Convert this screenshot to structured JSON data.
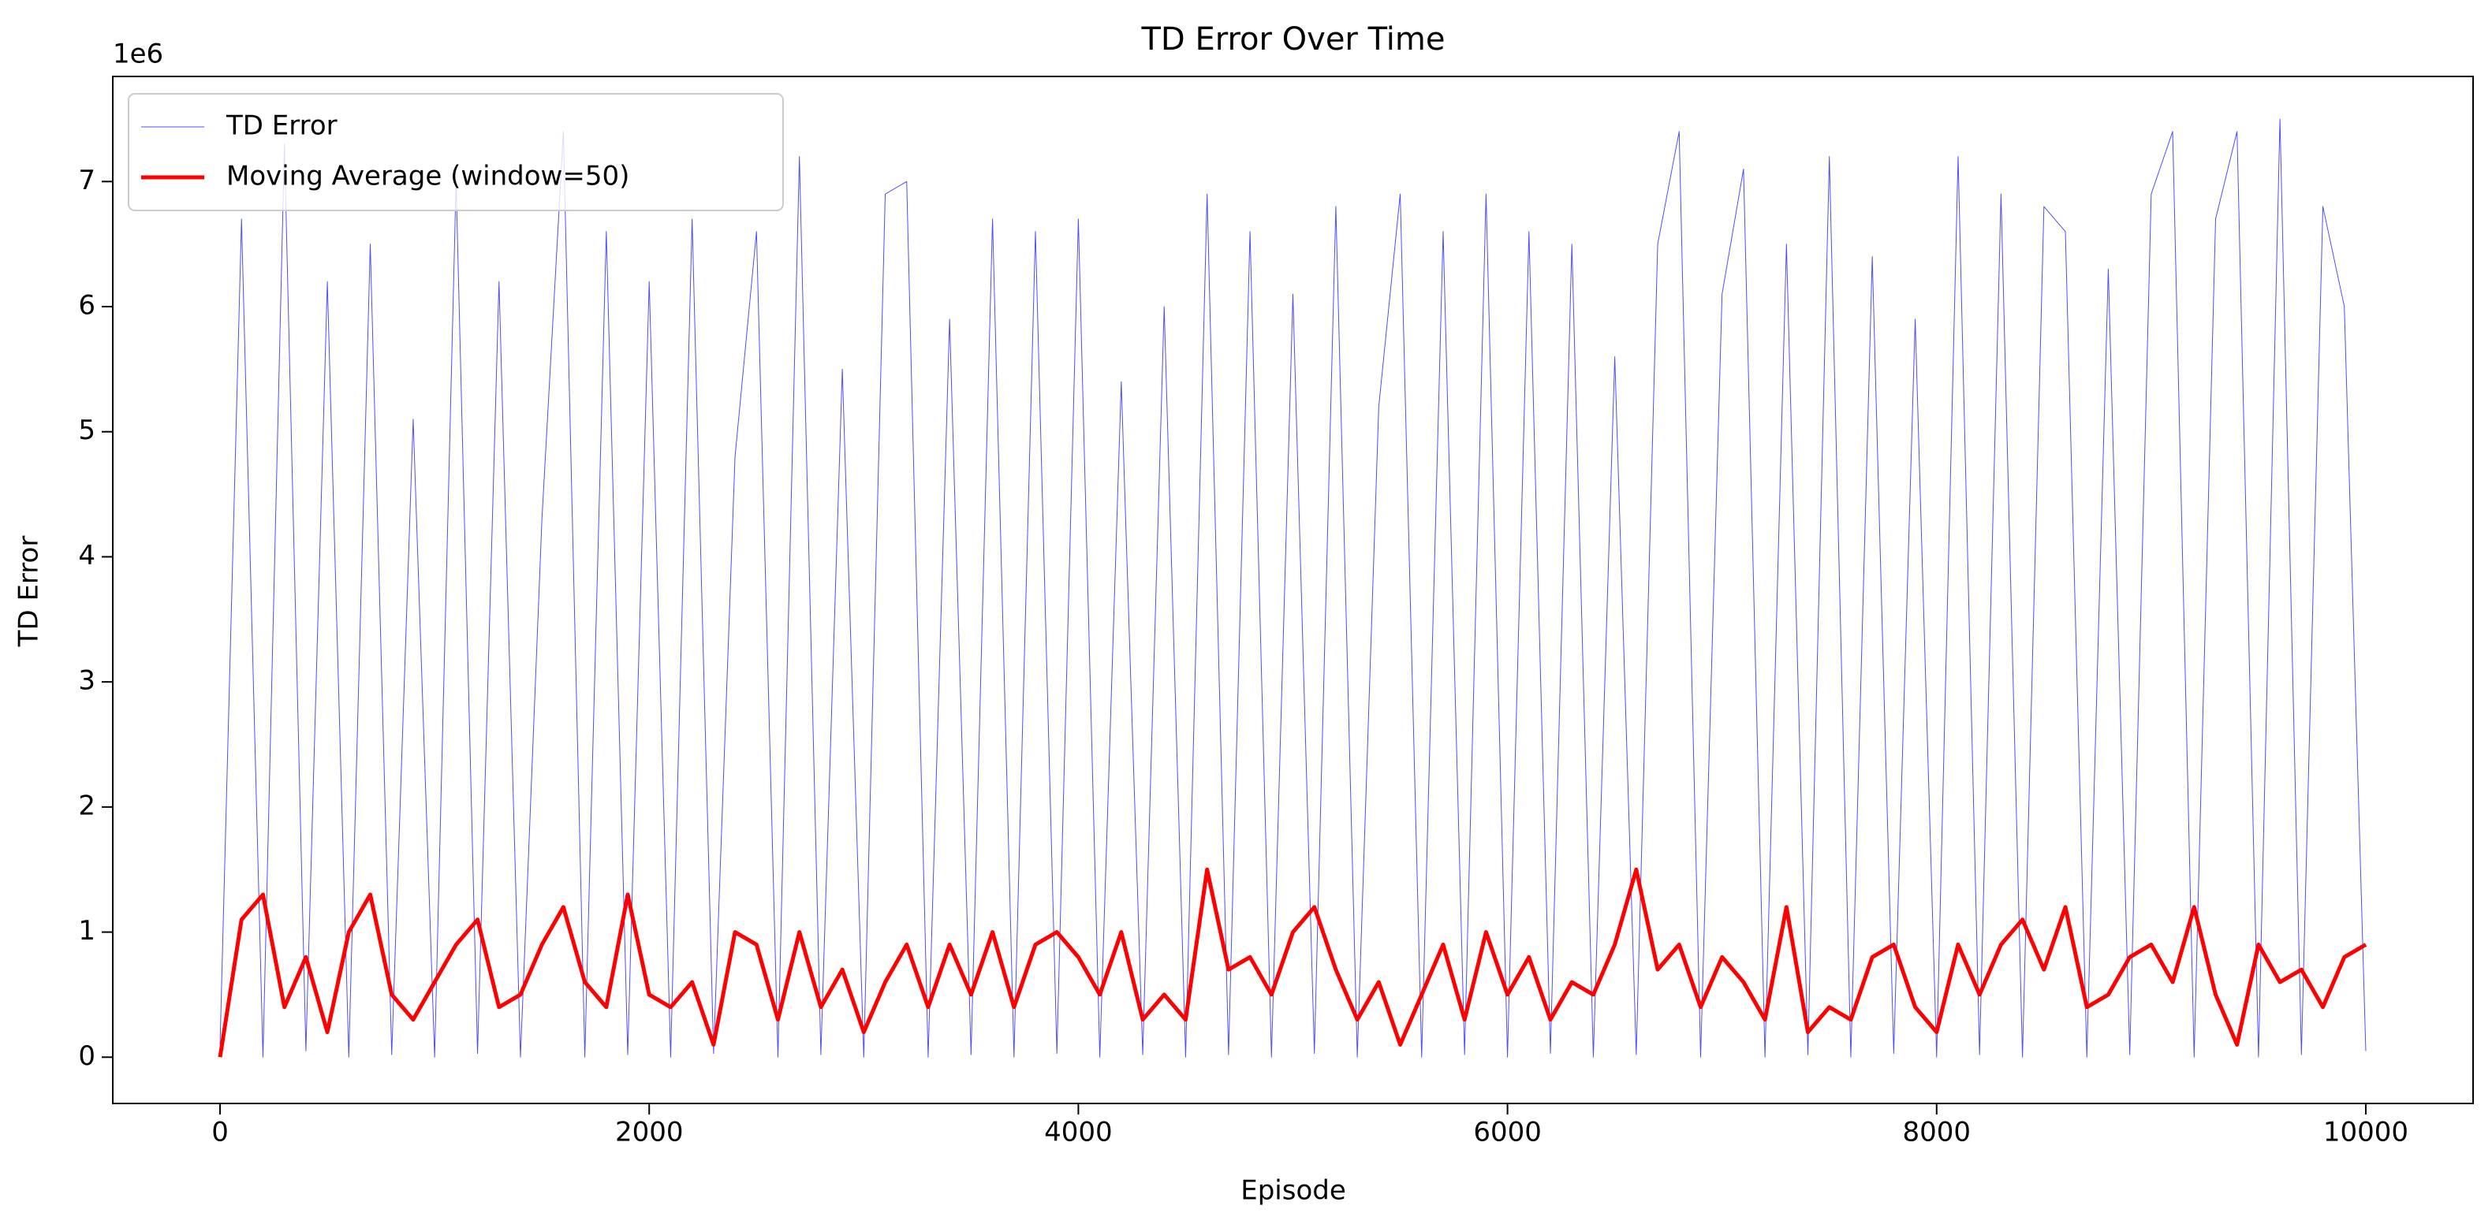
{
  "chart_data": {
    "type": "line",
    "title": "TD Error Over Time",
    "xlabel": "Episode",
    "ylabel": "TD Error",
    "y_offset_label": "1e6",
    "legend": "upper left",
    "xlim": [
      -500,
      10500
    ],
    "ylim": [
      -0.37,
      7.84
    ],
    "xticks": [
      0,
      2000,
      4000,
      6000,
      8000,
      10000
    ],
    "yticks": [
      0,
      1,
      2,
      3,
      4,
      5,
      6,
      7
    ],
    "x": [
      0,
      100,
      200,
      300,
      400,
      500,
      600,
      700,
      800,
      900,
      1000,
      1100,
      1200,
      1300,
      1400,
      1500,
      1600,
      1700,
      1800,
      1900,
      2000,
      2100,
      2200,
      2300,
      2400,
      2500,
      2600,
      2700,
      2800,
      2900,
      3000,
      3100,
      3200,
      3300,
      3400,
      3500,
      3600,
      3700,
      3800,
      3900,
      4000,
      4100,
      4200,
      4300,
      4400,
      4500,
      4600,
      4700,
      4800,
      4900,
      5000,
      5100,
      5200,
      5300,
      5400,
      5500,
      5600,
      5700,
      5800,
      5900,
      6000,
      6100,
      6200,
      6300,
      6400,
      6500,
      6600,
      6700,
      6800,
      6900,
      7000,
      7100,
      7200,
      7300,
      7400,
      7500,
      7600,
      7700,
      7800,
      7900,
      8000,
      8100,
      8200,
      8300,
      8400,
      8500,
      8600,
      8700,
      8800,
      8900,
      9000,
      9100,
      9200,
      9300,
      9400,
      9500,
      9600,
      9700,
      9800,
      9900,
      10000
    ],
    "series": [
      {
        "name": "TD Error",
        "color": "#0000ff",
        "opacity": 0.7,
        "width": 1,
        "values": [
          0.1,
          6.7,
          0.0,
          7.3,
          0.05,
          6.2,
          0.0,
          6.5,
          0.02,
          5.1,
          0.0,
          7.0,
          0.03,
          6.2,
          0.0,
          4.3,
          7.4,
          0.0,
          6.6,
          0.02,
          6.2,
          0.0,
          6.7,
          0.03,
          4.8,
          6.6,
          0.0,
          7.2,
          0.02,
          5.5,
          0.0,
          6.9,
          7.0,
          0.0,
          5.9,
          0.02,
          6.7,
          0.0,
          6.6,
          0.03,
          6.7,
          0.0,
          5.4,
          0.02,
          6.0,
          0.0,
          6.9,
          0.02,
          6.6,
          0.0,
          6.1,
          0.03,
          6.8,
          0.0,
          5.2,
          6.9,
          0.0,
          6.6,
          0.02,
          6.9,
          0.0,
          6.6,
          0.03,
          6.5,
          0.0,
          5.6,
          0.02,
          6.5,
          7.4,
          0.0,
          6.1,
          7.1,
          0.0,
          6.5,
          0.02,
          7.2,
          0.0,
          6.4,
          0.03,
          5.9,
          0.0,
          7.2,
          0.02,
          6.9,
          0.0,
          6.8,
          6.6,
          0.0,
          6.3,
          0.02,
          6.9,
          7.4,
          0.0,
          6.7,
          7.4,
          0.0,
          7.5,
          0.02,
          6.8,
          6.0,
          0.05
        ]
      },
      {
        "name": "Moving Average (window=50)",
        "color": "#ff0000",
        "opacity": 1,
        "width": 5,
        "values": [
          0.0,
          1.1,
          1.3,
          0.4,
          0.8,
          0.2,
          1.0,
          1.3,
          0.5,
          0.3,
          0.6,
          0.9,
          1.1,
          0.4,
          0.5,
          0.9,
          1.2,
          0.6,
          0.4,
          1.3,
          0.5,
          0.4,
          0.6,
          0.1,
          1.0,
          0.9,
          0.3,
          1.0,
          0.4,
          0.7,
          0.2,
          0.6,
          0.9,
          0.4,
          0.9,
          0.5,
          1.0,
          0.4,
          0.9,
          1.0,
          0.8,
          0.5,
          1.0,
          0.3,
          0.5,
          0.3,
          1.5,
          0.7,
          0.8,
          0.5,
          1.0,
          1.2,
          0.7,
          0.3,
          0.6,
          0.1,
          0.5,
          0.9,
          0.3,
          1.0,
          0.5,
          0.8,
          0.3,
          0.6,
          0.5,
          0.9,
          1.5,
          0.7,
          0.9,
          0.4,
          0.8,
          0.6,
          0.3,
          1.2,
          0.2,
          0.4,
          0.3,
          0.8,
          0.9,
          0.4,
          0.2,
          0.9,
          0.5,
          0.9,
          1.1,
          0.7,
          1.2,
          0.4,
          0.5,
          0.8,
          0.9,
          0.6,
          1.2,
          0.5,
          0.1,
          0.9,
          0.6,
          0.7,
          0.4,
          0.8,
          0.9
        ]
      }
    ]
  }
}
